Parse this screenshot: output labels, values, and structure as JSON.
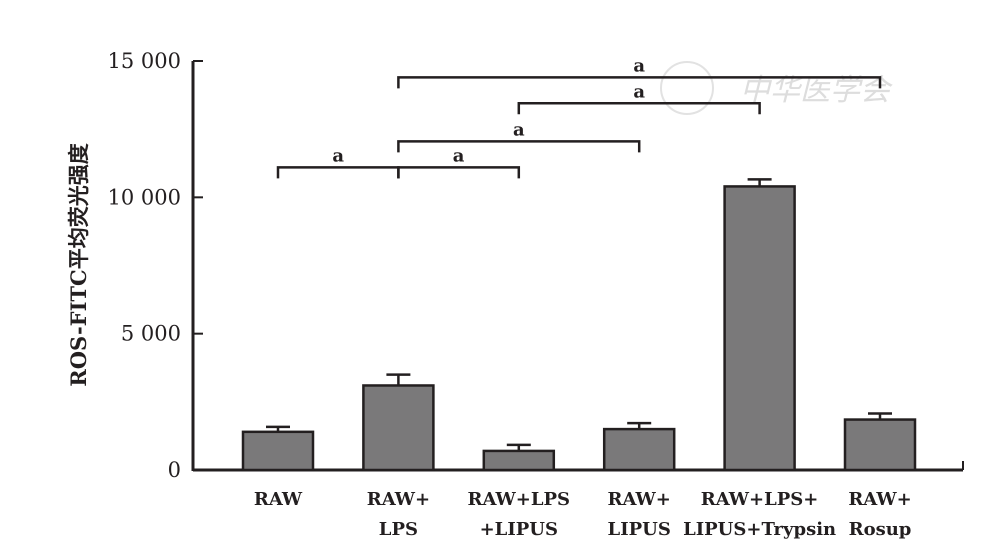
{
  "chart_data": {
    "type": "bar",
    "title": "",
    "xlabel": "",
    "ylabel": "ROS-FITC平均荧光强度",
    "ylim": [
      0,
      15000
    ],
    "yticks": [
      0,
      5000,
      10000,
      15000
    ],
    "ytick_labels": [
      "0",
      "5 000",
      "10 000",
      "15 000"
    ],
    "categories": [
      [
        "RAW"
      ],
      [
        "RAW+",
        "LPS"
      ],
      [
        "RAW+LPS",
        "+LIPUS"
      ],
      [
        "RAW+",
        "LIPUS"
      ],
      [
        "RAW+LPS+",
        "LIPUS+Trypsin"
      ],
      [
        "RAW+",
        "Rosup"
      ]
    ],
    "values": [
      1400,
      3100,
      700,
      1500,
      10400,
      1850
    ],
    "errors": [
      180,
      400,
      220,
      220,
      260,
      220
    ],
    "bar_color": "#7a797a",
    "significance": [
      {
        "from": 0,
        "to": 1,
        "y": 11100,
        "label": "a"
      },
      {
        "from": 1,
        "to": 2,
        "y": 11100,
        "label": "a"
      },
      {
        "from": 1,
        "to": 3,
        "y": 12050,
        "label": "a"
      },
      {
        "from": 2,
        "to": 4,
        "y": 13450,
        "label": "a"
      },
      {
        "from": 1,
        "to": 5,
        "y": 14400,
        "label": "a"
      }
    ],
    "grid": false,
    "legend": "none"
  },
  "watermark": "中华医学会"
}
